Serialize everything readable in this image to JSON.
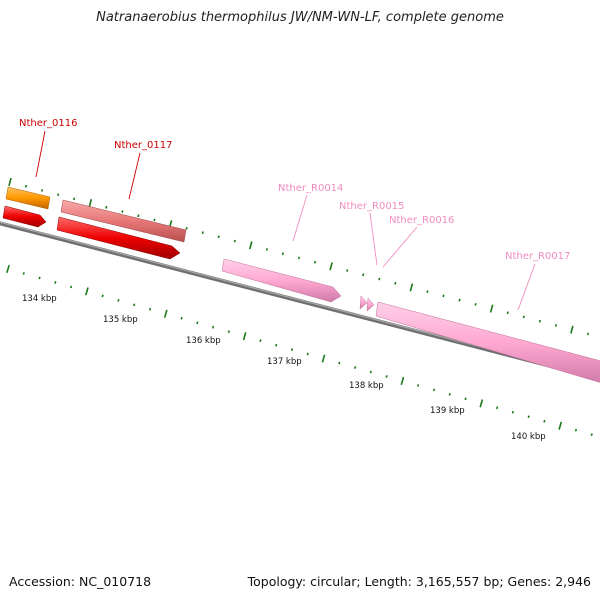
{
  "title": "Natranaerobius thermophilus JW/NM-WN-LF, complete genome",
  "footer": {
    "accession": "Accession: NC_010718",
    "stats": "Topology: circular; Length: 3,165,557 bp; Genes: 2,946"
  },
  "colors": {
    "backbone": "#808080",
    "tick": "#1a7a1a",
    "cds_strand_a": "#ff0000",
    "cds_strand_b": "#f08080",
    "cds_orange": "#ff8c00",
    "rna": "#ffaad5",
    "label_red": "#cc0000",
    "label_pink": "#f08cc0"
  },
  "ruler_labels": [
    "134 kbp",
    "135 kbp",
    "136 kbp",
    "137 kbp",
    "138 kbp",
    "139 kbp",
    "140 kbp"
  ],
  "genes": [
    {
      "name": "Nther_0116",
      "label_color": "label_red"
    },
    {
      "name": "Nther_0117",
      "label_color": "label_red"
    },
    {
      "name": "Nther_R0014",
      "label_color": "label_pink"
    },
    {
      "name": "Nther_R0015",
      "label_color": "label_pink"
    },
    {
      "name": "Nther_R0016",
      "label_color": "label_pink"
    },
    {
      "name": "Nther_R0017",
      "label_color": "label_pink"
    }
  ]
}
